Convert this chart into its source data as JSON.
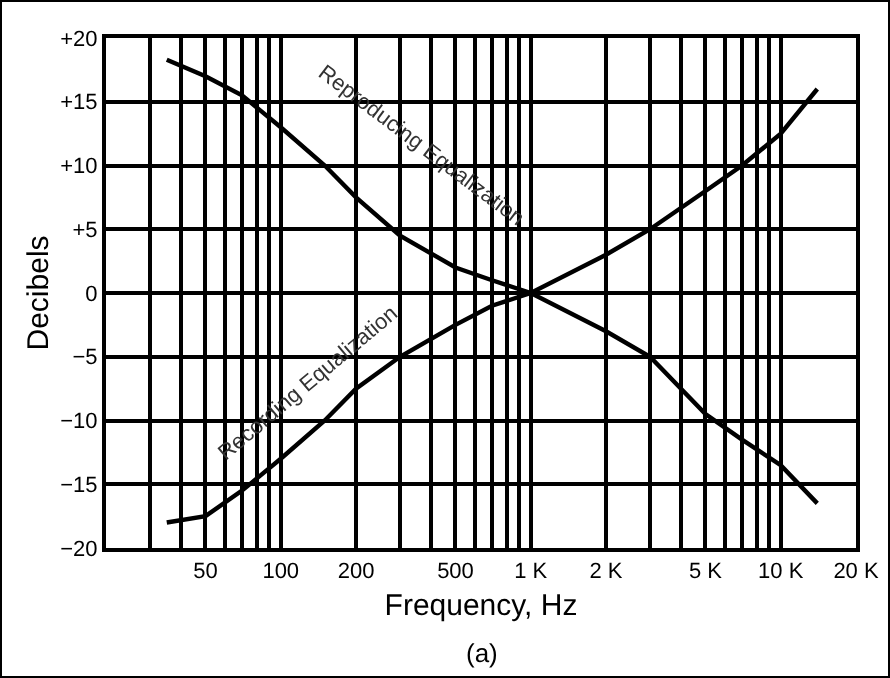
{
  "chart_data": {
    "type": "line",
    "xlabel": "Frequency, Hz",
    "ylabel": "Decibels",
    "annotations": [
      "Reproducing Equalization",
      "Recording Equalization",
      "(a)"
    ],
    "series": [
      {
        "color": "#000000",
        "x": [
          35,
          50,
          70,
          100,
          150,
          200,
          300,
          500,
          700,
          1000,
          2000,
          3000,
          5000,
          7000,
          10000,
          14000
        ],
        "values": [
          18.3,
          17,
          15.5,
          13,
          10,
          7.5,
          4.5,
          2,
          1,
          0,
          -3,
          -5,
          -9.5,
          -11.5,
          -13.5,
          -16.5
        ]
      },
      {
        "color": "#000000",
        "x": [
          35,
          50,
          70,
          100,
          150,
          200,
          300,
          500,
          700,
          1000,
          2000,
          3000,
          5000,
          7000,
          10000,
          14000
        ],
        "values": [
          -18,
          -17.5,
          -15.5,
          -13,
          -10,
          -7.5,
          -5,
          -2.5,
          -1,
          0,
          3,
          5,
          8,
          10,
          12.5,
          16
        ]
      }
    ],
    "log": "x",
    "xlim": [
      20,
      20000
    ],
    "ylim": [
      -20,
      20
    ],
    "xticks": [
      {
        "value": 20,
        "label": null
      },
      {
        "value": 30,
        "label": null
      },
      {
        "value": 40,
        "label": null
      },
      50,
      {
        "value": 60,
        "label": null
      },
      {
        "value": 70,
        "label": null
      },
      {
        "value": 80,
        "label": null
      },
      {
        "value": 90,
        "label": null
      },
      100,
      200,
      {
        "value": 300,
        "label": null
      },
      {
        "value": 400,
        "label": null
      },
      500,
      {
        "value": 600,
        "label": null
      },
      {
        "value": 700,
        "label": null
      },
      {
        "value": 800,
        "label": null
      },
      {
        "value": 900,
        "label": null
      },
      {
        "value": 1000,
        "label": "1 K"
      },
      {
        "value": 2000,
        "label": "2 K"
      },
      {
        "value": 3000,
        "label": null
      },
      {
        "value": 4000,
        "label": null
      },
      {
        "value": 5000,
        "label": "5 K"
      },
      {
        "value": 6000,
        "label": null
      },
      {
        "value": 7000,
        "label": null
      },
      {
        "value": 8000,
        "label": null
      },
      {
        "value": 9000,
        "label": null
      },
      {
        "value": 10000,
        "label": "10 K"
      },
      {
        "value": 20000,
        "label": "20 K"
      }
    ],
    "yticks": [
      {
        "value": 20,
        "label": "+20"
      },
      {
        "value": 15,
        "label": "+15"
      },
      {
        "value": 10,
        "label": "+10"
      },
      {
        "value": 5,
        "label": "+5"
      },
      0,
      {
        "value": -5,
        "label": "−5"
      },
      {
        "value": -10,
        "label": "−10"
      },
      {
        "value": -15,
        "label": "−15"
      },
      {
        "value": -20,
        "label": "−20"
      }
    ],
    "grid": true,
    "line_style": "solid",
    "marker": "none"
  }
}
